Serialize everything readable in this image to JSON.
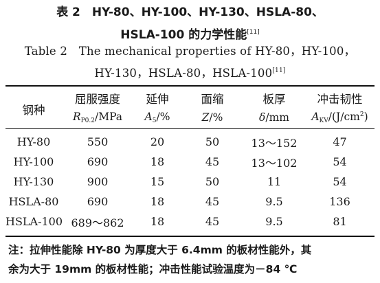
{
  "caption": {
    "cn_line1": "表 2　HY-80、HY-100、HY-130、HSLA-80、",
    "cn_line2": "HSLA-100 的力学性能",
    "cn_ref": "[11]",
    "en_line1": "Table 2　The mechanical properties of HY-80，HY-100，",
    "en_line2": "HY-130，HSLA-80，HSLA-100",
    "en_ref": "[11]"
  },
  "table": {
    "headers": [
      {
        "cn": "钢种"
      },
      {
        "cn": "屈服强度",
        "sym": "R",
        "sub": "P0.2",
        "unit": "/MPa"
      },
      {
        "cn": "延伸",
        "sym": "A",
        "sub": "5",
        "unit": "/%"
      },
      {
        "cn": "面缩",
        "sym": "Z",
        "unit": "/%"
      },
      {
        "cn": "板厚",
        "sym": "δ",
        "unit": "/mm"
      },
      {
        "cn": "冲击韧性",
        "sym": "A",
        "sub": "KV",
        "unit": "/(J/cm",
        "sup": "2",
        "unit_end": ")"
      }
    ],
    "rows": [
      [
        "HY-80",
        "550",
        "20",
        "50",
        "13～152",
        "47"
      ],
      [
        "HY-100",
        "690",
        "18",
        "45",
        "13～102",
        "54"
      ],
      [
        "HY-130",
        "900",
        "15",
        "50",
        "11",
        "54"
      ],
      [
        "HSLA-80",
        "690",
        "18",
        "45",
        "9.5",
        "136"
      ],
      [
        "HSLA-100",
        "689～862",
        "18",
        "45",
        "9.5",
        "81"
      ]
    ]
  },
  "note": {
    "line1": "注：拉伸性能除 HY-80 为厚度大于 6.4mm 的板材性能外，其",
    "line2": "余为大于 19mm 的板材性能；冲击性能试验温度为－84 ℃"
  }
}
